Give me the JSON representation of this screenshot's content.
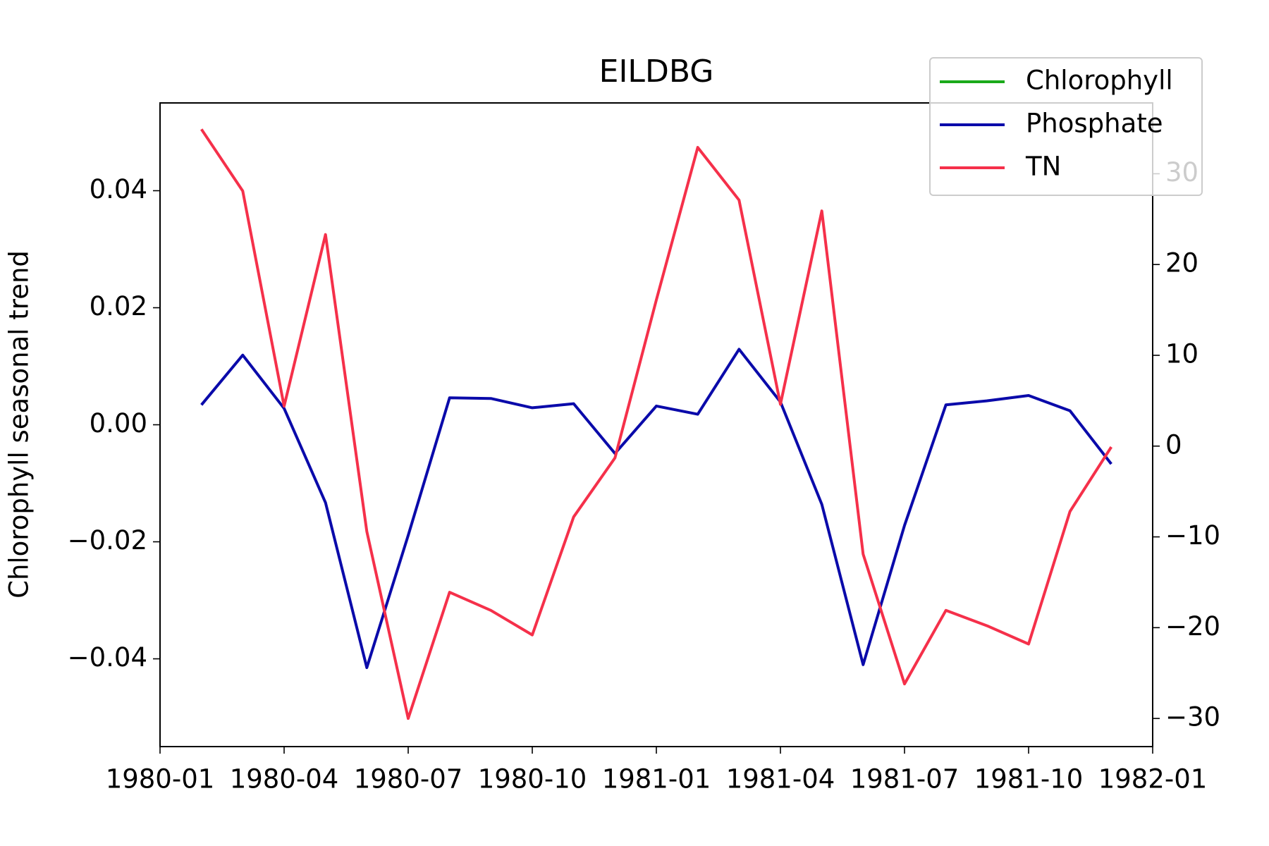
{
  "chart_data": {
    "type": "line",
    "title": "EILDBG",
    "ylabel": "Chlorophyll seasonal trend",
    "x": [
      "1980-02",
      "1980-03",
      "1980-04",
      "1980-05",
      "1980-06",
      "1980-07",
      "1980-08",
      "1980-09",
      "1980-10",
      "1980-11",
      "1980-12",
      "1981-01",
      "1981-02",
      "1981-03",
      "1981-04",
      "1981-05",
      "1981-06",
      "1981-07",
      "1981-08",
      "1981-09",
      "1981-10",
      "1981-11",
      "1981-12"
    ],
    "series": [
      {
        "name": "Chlorophyll",
        "color": "#1aaa1a",
        "axis": "y",
        "values": [
          null,
          null,
          null,
          null,
          null,
          null,
          null,
          null,
          null,
          null,
          null,
          null,
          null,
          null,
          null,
          null,
          null,
          null,
          null,
          null,
          null,
          null,
          null
        ]
      },
      {
        "name": "Phosphate",
        "color": "#0a0aaa",
        "axis": "y",
        "values": [
          0.0034,
          0.0119,
          0.0028,
          -0.0133,
          -0.0415,
          -0.0189,
          0.0046,
          0.0045,
          0.0029,
          0.0036,
          -0.0049,
          0.0032,
          0.0018,
          0.0129,
          0.0039,
          -0.0136,
          -0.041,
          -0.0172,
          0.0034,
          0.0041,
          0.005,
          0.0024,
          -0.0067
        ]
      },
      {
        "name": "TN",
        "color": "#f5304a",
        "axis": "y2",
        "values": [
          34.9,
          28.1,
          4.4,
          23.3,
          -9.4,
          -30.0,
          -16.1,
          -18.1,
          -20.8,
          -7.8,
          -1.3,
          16.1,
          32.9,
          27.1,
          4.6,
          25.9,
          -11.9,
          -26.2,
          -18.1,
          -19.8,
          -21.8,
          -7.2,
          -0.1
        ]
      }
    ],
    "xlim": [
      "1980-01",
      "1982-01"
    ],
    "xticks": [
      "1980-01",
      "1980-04",
      "1980-07",
      "1980-10",
      "1981-01",
      "1981-04",
      "1981-07",
      "1981-10",
      "1982-01"
    ],
    "ylim": [
      -0.055,
      0.055
    ],
    "yticks": [
      {
        "value": -0.04,
        "label": "−0.04"
      },
      {
        "value": -0.02,
        "label": "−0.02"
      },
      {
        "value": 0,
        "label": "0.00"
      },
      {
        "value": 0.02,
        "label": "0.02"
      },
      {
        "value": 0.04,
        "label": "0.04"
      }
    ],
    "y2lim": [
      -33.1,
      37.8
    ],
    "y2ticks": [
      {
        "value": -30,
        "label": "−30"
      },
      {
        "value": -20,
        "label": "−20"
      },
      {
        "value": -10,
        "label": "−10"
      },
      0,
      10,
      20,
      30
    ],
    "legend": "upper right"
  }
}
